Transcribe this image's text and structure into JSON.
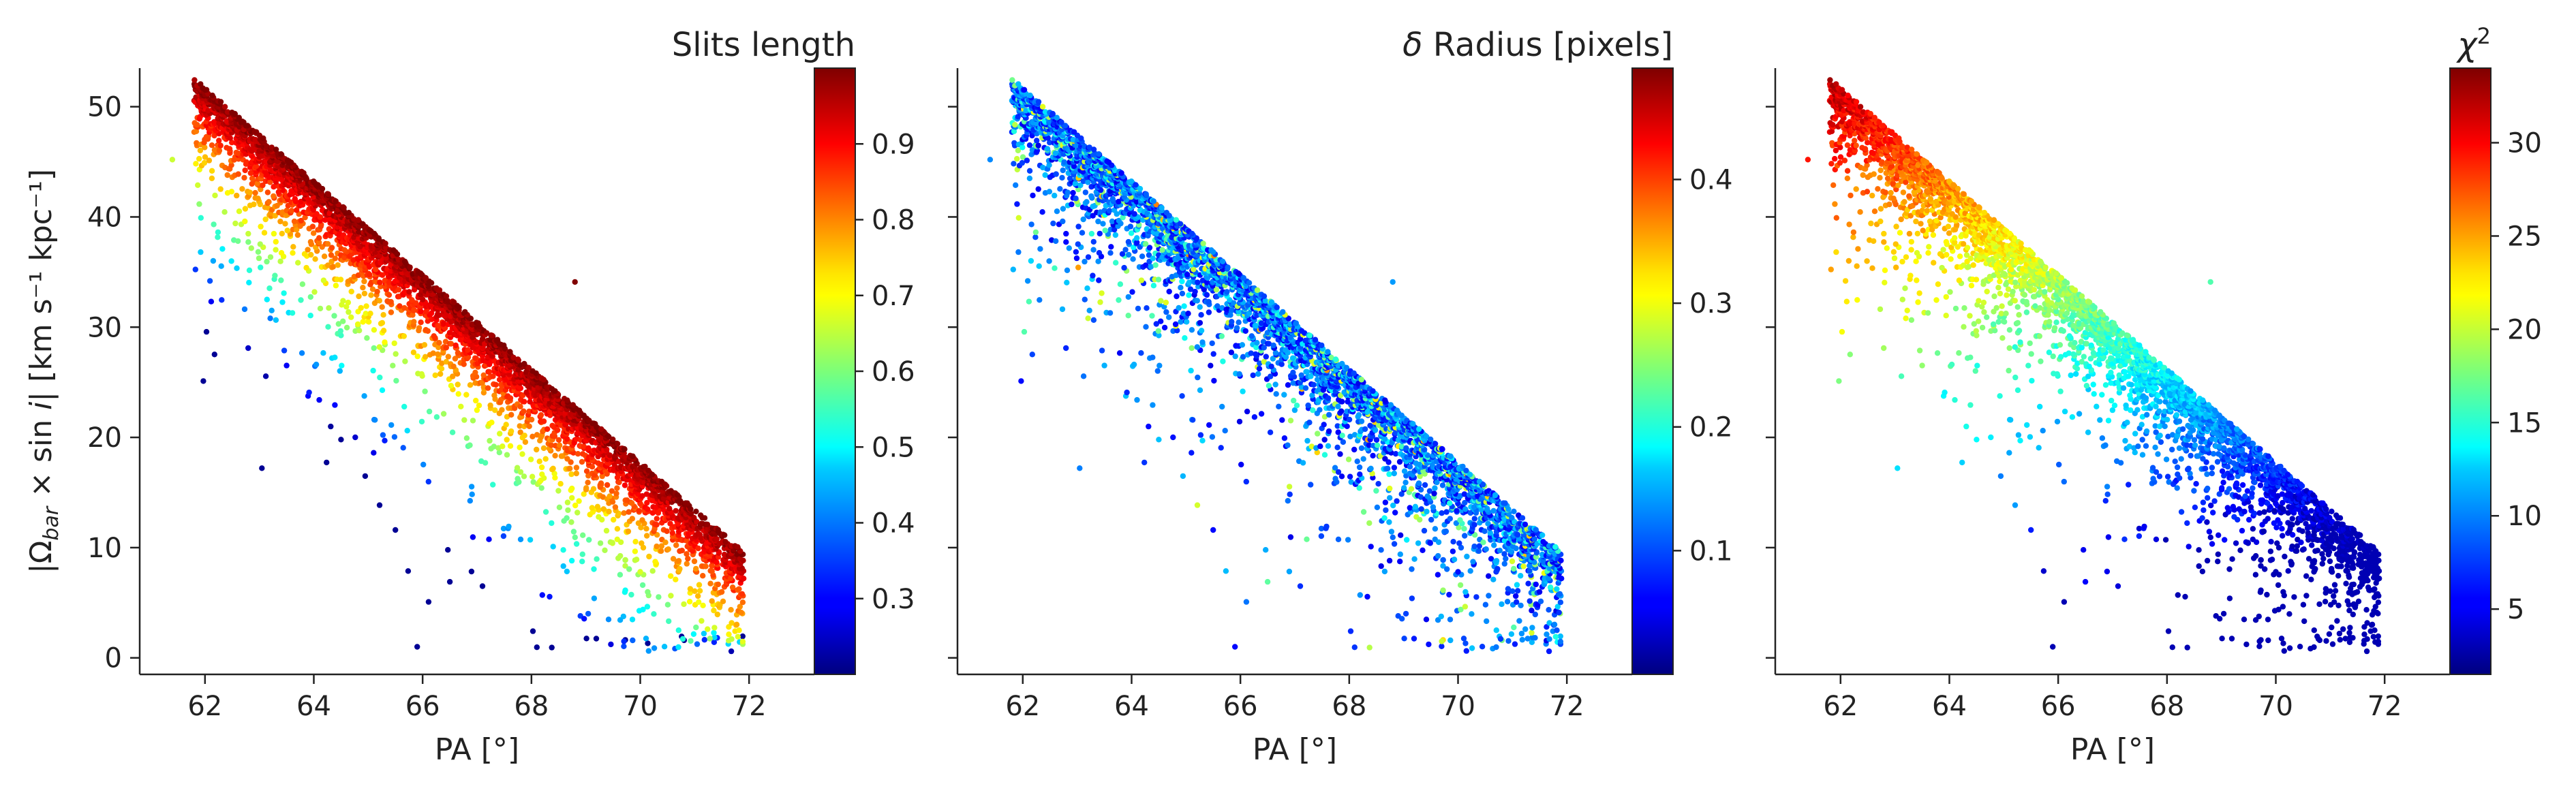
{
  "chart_data": [
    {
      "type": "scatter",
      "xlabel": "PA [°]",
      "ylabel": "|Ω_bar × sin i|   [km s⁻¹ kpc⁻¹]",
      "xlim": [
        60.8,
        73.2
      ],
      "ylim": [
        -1.5,
        53.5
      ],
      "x_ticks": [
        "62",
        "64",
        "66",
        "68",
        "70",
        "72"
      ],
      "y_ticks": [
        "0",
        "10",
        "20",
        "30",
        "40",
        "50"
      ],
      "colorbar": {
        "label": "Slits length",
        "range": [
          0.2,
          1.0
        ],
        "ticks": [
          "0.3",
          "0.4",
          "0.5",
          "0.6",
          "0.7",
          "0.8",
          "0.9"
        ],
        "colormap": "jet"
      },
      "color_trend": "increasing toward upper (ridge) edge of the distribution",
      "grid": false
    },
    {
      "type": "scatter",
      "xlabel": "PA [°]",
      "ylabel": "",
      "xlim": [
        60.8,
        73.2
      ],
      "ylim": [
        -1.5,
        53.5
      ],
      "x_ticks": [
        "62",
        "64",
        "66",
        "68",
        "70",
        "72"
      ],
      "colorbar": {
        "label": "δ Radius [pixels]",
        "range": [
          0.0,
          0.49
        ],
        "ticks": [
          "0.1",
          "0.2",
          "0.3",
          "0.4"
        ],
        "colormap": "jet"
      },
      "color_trend": "mostly low values (blue), scattered higher values",
      "grid": false
    },
    {
      "type": "scatter",
      "xlabel": "PA [°]",
      "ylabel": "",
      "xlim": [
        60.8,
        73.2
      ],
      "ylim": [
        -1.5,
        53.5
      ],
      "x_ticks": [
        "62",
        "64",
        "66",
        "68",
        "70",
        "72"
      ],
      "colorbar": {
        "label": "χ²",
        "range": [
          1.5,
          34.0
        ],
        "ticks": [
          "5",
          "10",
          "15",
          "20",
          "25",
          "30"
        ],
        "colormap": "jet"
      },
      "color_trend": "high at small PA / high Ω, decreasing toward large PA",
      "grid": false
    }
  ],
  "colors": {
    "axis": "#222222",
    "background": "#ffffff"
  }
}
